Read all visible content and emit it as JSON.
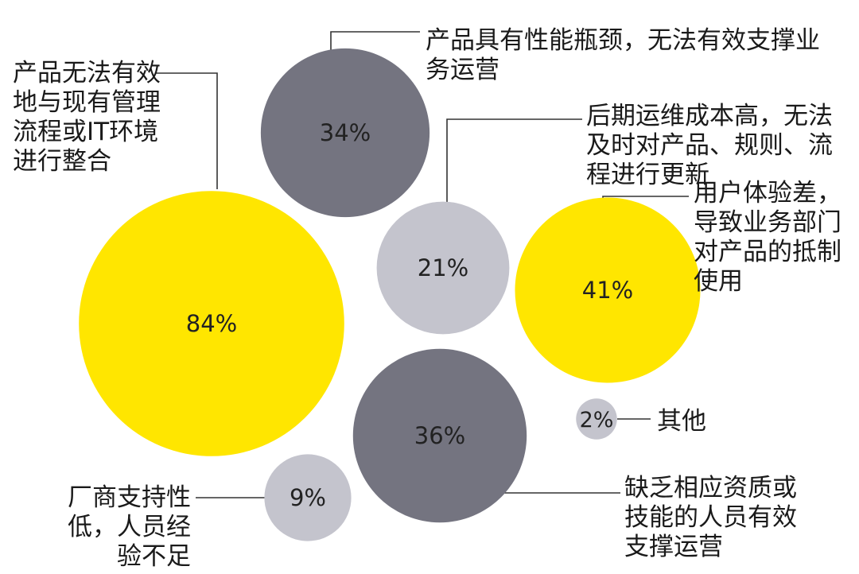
{
  "chart_data": {
    "type": "bubble",
    "colors": {
      "yellow": "#FFE600",
      "dark": "#747480",
      "light": "#C4C4CD"
    },
    "points": [
      {
        "value": 84,
        "text": "84%",
        "label": "产品无法有效\n地与现有管理\n流程或IT环境\n进行整合",
        "color": "yellow"
      },
      {
        "value": 34,
        "text": "34%",
        "label": "产品具有性能瓶颈，无法有效支撑业\n务运营",
        "color": "dark"
      },
      {
        "value": 21,
        "text": "21%",
        "label": "后期运维成本高，无法\n及时对产品、规则、流\n程进行更新",
        "color": "light"
      },
      {
        "value": 41,
        "text": "41%",
        "label": "用户体验差，\n导致业务部门\n对产品的抵制\n使用",
        "color": "yellow"
      },
      {
        "value": 36,
        "text": "36%",
        "label": "缺乏相应资质或\n技能的人员有效\n支撑运营",
        "color": "dark"
      },
      {
        "value": 9,
        "text": "9%",
        "label": "厂商支持性\n低，人员经\n验不足",
        "color": "light"
      },
      {
        "value": 2,
        "text": "2%",
        "label": "其他",
        "color": "light"
      }
    ]
  }
}
